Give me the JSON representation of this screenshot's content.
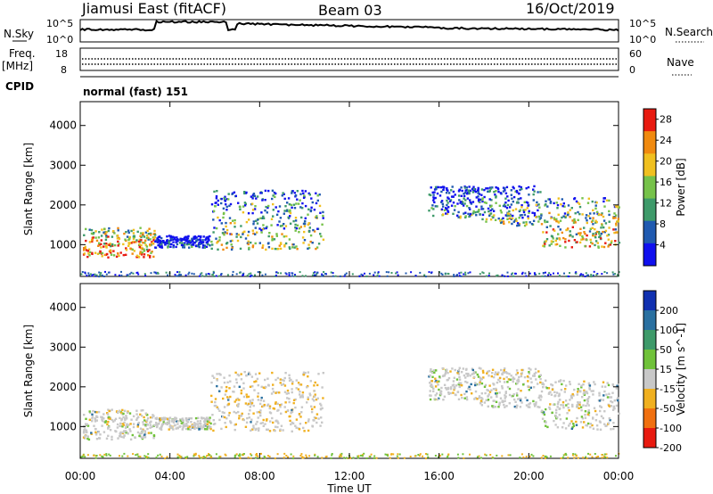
{
  "header": {
    "station": "Jiamusi East (fitACF)",
    "beam": "Beam 03",
    "date": "16/Oct/2019"
  },
  "status_panels": {
    "nsky_label": "N.Sky",
    "nsky_ticks": [
      "10^5",
      "10^0"
    ],
    "nsearch_label": "N.Search",
    "nsearch_ticks": [
      "10^5",
      "10^0"
    ],
    "freq_label": "Freq.",
    "freq_unit": "[MHz]",
    "freq_ticks": [
      "18",
      "8"
    ],
    "nave_label": "Nave",
    "nave_ticks": [
      "60",
      "0"
    ],
    "cpid_label": "CPID",
    "cpid_value": "normal (fast) 151"
  },
  "chart_data": [
    {
      "type": "heatmap",
      "name": "power",
      "ylabel": "Slant Range [km]",
      "yticks": [
        "1000",
        "2000",
        "3000",
        "4000"
      ],
      "ylim": [
        200,
        4600
      ],
      "xlim_hours": [
        0,
        24
      ],
      "colorbar": {
        "label": "Power [dB]",
        "ticks": [
          "4",
          "8",
          "12",
          "16",
          "20",
          "24",
          "28"
        ],
        "colors": [
          "#1010ee",
          "#205ab0",
          "#3e9a6a",
          "#76c24a",
          "#f0c020",
          "#f08a10",
          "#e81a10"
        ],
        "range": [
          0,
          30
        ]
      },
      "echo_regions": [
        {
          "t0": 0.1,
          "t1": 3.3,
          "r0": 700,
          "r1": 1450,
          "level": 0.85
        },
        {
          "t0": 3.3,
          "t1": 5.8,
          "r0": 950,
          "r1": 1250,
          "level": 0.2
        },
        {
          "t0": 5.8,
          "t1": 10.8,
          "r0": 900,
          "r1": 2400,
          "level": 0.55
        },
        {
          "t0": 15.5,
          "t1": 17.8,
          "r0": 1700,
          "r1": 2500,
          "level": 0.35
        },
        {
          "t0": 17.8,
          "t1": 20.5,
          "r0": 1500,
          "r1": 2500,
          "level": 0.45
        },
        {
          "t0": 20.5,
          "t1": 24,
          "r0": 950,
          "r1": 2200,
          "level": 0.7
        }
      ]
    },
    {
      "type": "heatmap",
      "name": "velocity",
      "ylabel": "Slant Range [km]",
      "yticks": [
        "1000",
        "2000",
        "3000",
        "4000"
      ],
      "ylim": [
        200,
        4600
      ],
      "xlim_hours": [
        0,
        24
      ],
      "colorbar": {
        "label": "Velocity [m s^-1]",
        "ticks": [
          "200",
          "100",
          "50",
          "15",
          "-15",
          "-50",
          "-100",
          "-200"
        ],
        "colors": [
          "#1030b0",
          "#2a70a0",
          "#3e9a6a",
          "#70c23a",
          "#c8c8c8",
          "#f0b020",
          "#f07010",
          "#e81a10"
        ],
        "range": [
          -250,
          250
        ]
      },
      "echo_regions": [
        {
          "t0": 0.1,
          "t1": 3.3,
          "r0": 700,
          "r1": 1450,
          "level": 0.0
        },
        {
          "t0": 3.3,
          "t1": 5.8,
          "r0": 950,
          "r1": 1250,
          "level": 0.0
        },
        {
          "t0": 5.8,
          "t1": 10.8,
          "r0": 900,
          "r1": 2400,
          "level": -0.1
        },
        {
          "t0": 15.5,
          "t1": 17.8,
          "r0": 1700,
          "r1": 2500,
          "level": 0.0
        },
        {
          "t0": 17.8,
          "t1": 20.5,
          "r0": 1500,
          "r1": 2500,
          "level": 0.0
        },
        {
          "t0": 20.5,
          "t1": 24,
          "r0": 950,
          "r1": 2200,
          "level": 0.0
        }
      ]
    }
  ],
  "x_axis": {
    "ticks": [
      "00:00",
      "04:00",
      "08:00",
      "12:00",
      "16:00",
      "20:00",
      "00:00"
    ],
    "label": "Time UT"
  }
}
